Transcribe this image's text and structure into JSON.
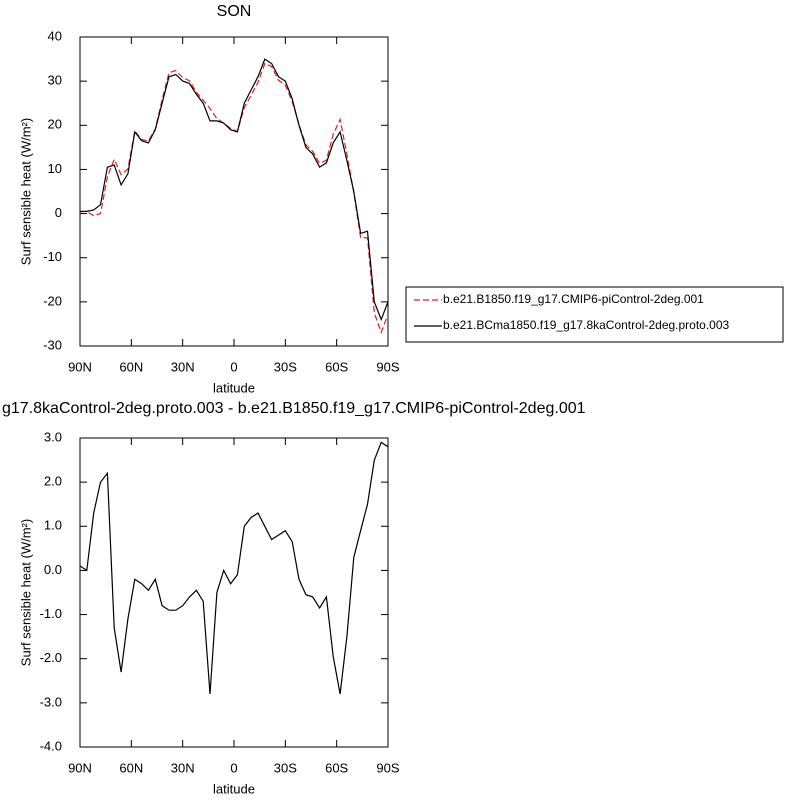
{
  "chart_data": [
    {
      "type": "line",
      "title": "SON",
      "xlabel": "latitude",
      "ylabel": "Surf sensible heat (W/m²)",
      "x": [
        90,
        86,
        82,
        78,
        74,
        70,
        66,
        62,
        58,
        54,
        50,
        46,
        42,
        38,
        34,
        30,
        26,
        22,
        18,
        14,
        10,
        6,
        2,
        -2,
        -6,
        -10,
        -14,
        -18,
        -22,
        -26,
        -30,
        -34,
        -38,
        -42,
        -46,
        -50,
        -54,
        -58,
        -62,
        -66,
        -70,
        -74,
        -78,
        -82,
        -86,
        -90
      ],
      "xlim": [
        90,
        -90
      ],
      "xticks": [
        {
          "value": 90,
          "label": "90N"
        },
        {
          "value": 60,
          "label": "60N"
        },
        {
          "value": 30,
          "label": "30N"
        },
        0,
        {
          "value": -30,
          "label": "30S"
        },
        {
          "value": -60,
          "label": "60S"
        },
        {
          "value": -90,
          "label": "90S"
        }
      ],
      "ylim": [
        -30,
        40
      ],
      "yticks": [
        40,
        30,
        20,
        10,
        0,
        -10,
        -20,
        -30
      ],
      "legend": "right",
      "series": [
        {
          "name": "b.e21.B1850.f19_g17.CMIP6-piControl-2deg.001",
          "color": "#e02020",
          "dash": true,
          "values": [
            0.4,
            0.5,
            -0.5,
            0,
            8.3,
            12.3,
            8.8,
            10.1,
            18.7,
            16.8,
            16.45,
            19.2,
            25.8,
            31.9,
            32.4,
            30.8,
            30.1,
            27.45,
            25.7,
            23.8,
            21.5,
            20.5,
            19.3,
            18.6,
            24,
            26.8,
            29.7,
            34,
            33.3,
            30.2,
            29.1,
            25.35,
            20.2,
            15.55,
            14.1,
            11.35,
            12.1,
            17.95,
            21.3,
            13.5,
            4.7,
            -5.4,
            -5.5,
            -22.5,
            -26.9,
            -22.8
          ]
        },
        {
          "name": "b.e21.BCma1850.f19_g17.8kaControl-2deg.proto.003",
          "color": "#000000",
          "dash": false,
          "values": [
            0.5,
            0.5,
            0.8,
            2,
            10.5,
            11,
            6.5,
            9,
            18.5,
            16.5,
            16,
            19,
            25,
            31,
            31.5,
            30,
            29.5,
            27,
            25,
            21,
            21,
            20.5,
            19,
            18.5,
            25,
            28,
            31,
            35,
            34,
            31,
            30,
            26,
            20,
            15,
            13.5,
            10.5,
            11.5,
            16,
            18.5,
            12,
            5,
            -4.5,
            -4,
            -20,
            -24,
            -20
          ]
        }
      ]
    },
    {
      "type": "line",
      "title": "g17.8kaControl-2deg.proto.003 - b.e21.B1850.f19_g17.CMIP6-piControl-2deg.001",
      "xlabel": "latitude",
      "ylabel": "Surf sensible heat (W/m²)",
      "x": [
        90,
        86,
        82,
        78,
        74,
        70,
        66,
        62,
        58,
        54,
        50,
        46,
        42,
        38,
        34,
        30,
        26,
        22,
        18,
        14,
        10,
        6,
        2,
        -2,
        -6,
        -10,
        -14,
        -18,
        -22,
        -26,
        -30,
        -34,
        -38,
        -42,
        -46,
        -50,
        -54,
        -58,
        -62,
        -66,
        -70,
        -74,
        -78,
        -82,
        -86,
        -90
      ],
      "xlim": [
        90,
        -90
      ],
      "xticks": [
        {
          "value": 90,
          "label": "90N"
        },
        {
          "value": 60,
          "label": "60N"
        },
        {
          "value": 30,
          "label": "30N"
        },
        0,
        {
          "value": -30,
          "label": "30S"
        },
        {
          "value": -60,
          "label": "60S"
        },
        {
          "value": -90,
          "label": "90S"
        }
      ],
      "ylim": [
        -4,
        3
      ],
      "yticks": [
        {
          "value": 3,
          "label": "3.0"
        },
        {
          "value": 2,
          "label": "2.0"
        },
        {
          "value": 1,
          "label": "1.0"
        },
        {
          "value": 0,
          "label": "0.0"
        },
        {
          "value": -1,
          "label": "-1.0"
        },
        {
          "value": -2,
          "label": "-2.0"
        },
        {
          "value": -3,
          "label": "-3.0"
        },
        {
          "value": -4,
          "label": "-4.0"
        }
      ],
      "color": "#000000",
      "values": [
        0.1,
        0.0,
        1.3,
        2.0,
        2.2,
        -1.3,
        -2.3,
        -1.1,
        -0.2,
        -0.3,
        -0.45,
        -0.2,
        -0.8,
        -0.9,
        -0.9,
        -0.8,
        -0.6,
        -0.45,
        -0.7,
        -2.8,
        -0.5,
        0.0,
        -0.3,
        -0.1,
        1.0,
        1.2,
        1.3,
        1.0,
        0.7,
        0.8,
        0.9,
        0.65,
        -0.2,
        -0.55,
        -0.6,
        -0.85,
        -0.6,
        -1.95,
        -2.8,
        -1.5,
        0.3,
        0.9,
        1.5,
        2.5,
        2.9,
        2.8
      ]
    }
  ]
}
